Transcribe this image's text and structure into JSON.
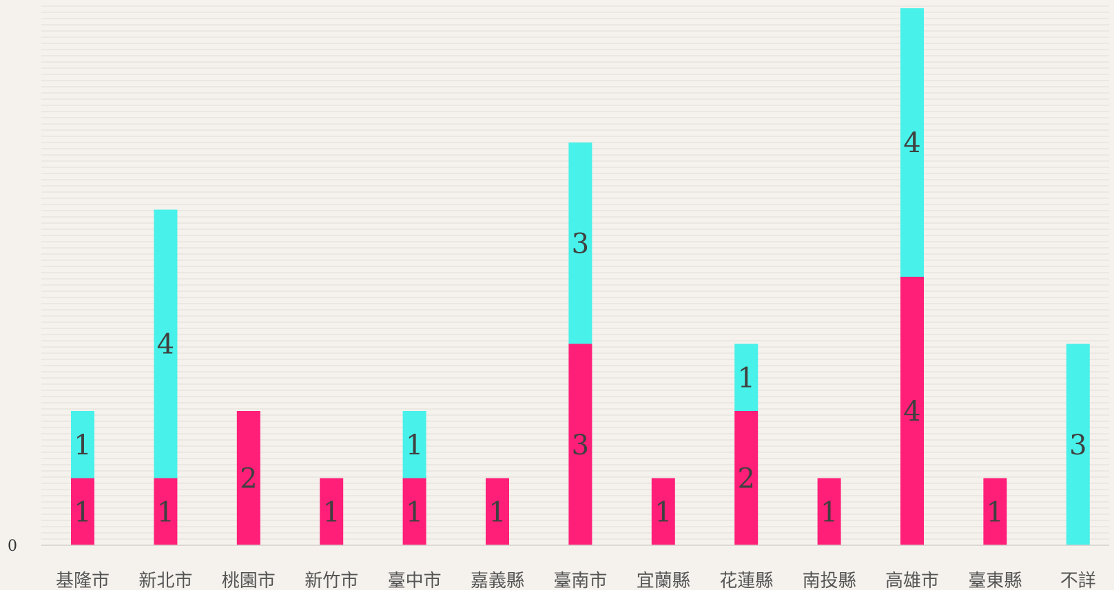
{
  "chart_data": {
    "type": "bar",
    "stacked": true,
    "categories": [
      "基隆市",
      "新北市",
      "桃園市",
      "新竹市",
      "臺中市",
      "嘉義縣",
      "臺南市",
      "宜蘭縣",
      "花蓮縣",
      "南投縣",
      "高雄市",
      "臺東縣",
      "不詳"
    ],
    "series": [
      {
        "color": "#ff1f78",
        "values": [
          1,
          1,
          2,
          1,
          1,
          1,
          3,
          1,
          2,
          1,
          4,
          1,
          0
        ]
      },
      {
        "color": "#48f1e9",
        "values": [
          1,
          4,
          0,
          0,
          1,
          0,
          3,
          0,
          1,
          0,
          4,
          0,
          3
        ]
      }
    ],
    "value_labels": [
      [
        "1",
        "1",
        "2",
        "1",
        "1",
        "1",
        "3",
        "1",
        "2",
        "1",
        "4",
        "1",
        ""
      ],
      [
        "1",
        "4",
        "",
        "",
        "1",
        "",
        "3",
        "",
        "1",
        "",
        "4",
        "",
        "3"
      ]
    ],
    "y_tick_labels": [
      "0"
    ],
    "ylim": [
      0,
      8
    ],
    "grid": true,
    "legend": "none",
    "title": "",
    "xlabel": "",
    "ylabel": ""
  }
}
